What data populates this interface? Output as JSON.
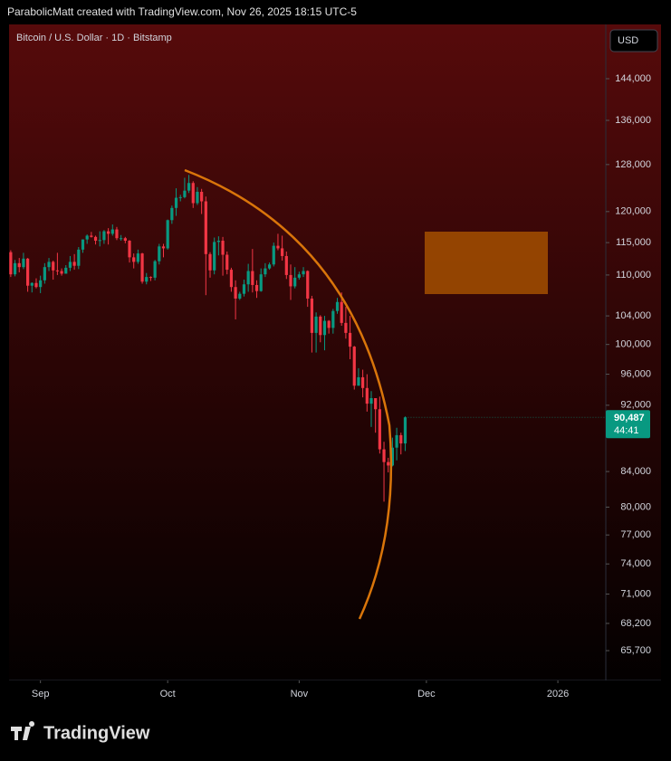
{
  "header": {
    "text": "ParabolicMatt created with TradingView.com, Nov 26, 2025 18:15 UTC-5"
  },
  "chart_data": {
    "type": "candlestick",
    "title": "Bitcoin / U.S. Dollar · 1D · Bitstamp",
    "currency": "USD",
    "categories": [
      null,
      null,
      null,
      null,
      null,
      null,
      null,
      null,
      null,
      null,
      null,
      null,
      null,
      null,
      null,
      null,
      null,
      null,
      null,
      null,
      null,
      null,
      null,
      null,
      null,
      null,
      null,
      null,
      null,
      null,
      null,
      null,
      null,
      null,
      null,
      null,
      null,
      null,
      null,
      null,
      null,
      null,
      null,
      null,
      null,
      null,
      null,
      null,
      null,
      null,
      null,
      null,
      null,
      null,
      null,
      null,
      null,
      null,
      null,
      null,
      null,
      null,
      null,
      null,
      null,
      null,
      null,
      null,
      null,
      null,
      null,
      null,
      null,
      null,
      null,
      null,
      null,
      null,
      null,
      null,
      null,
      null,
      null,
      null,
      null,
      null,
      null,
      null,
      null,
      null,
      null,
      null,
      null,
      null
    ],
    "open": [
      113500,
      110100,
      111800,
      111200,
      112500,
      108400,
      108800,
      108200,
      109200,
      111200,
      112000,
      110700,
      110600,
      110200,
      111100,
      112000,
      111400,
      113900,
      115500,
      116100,
      115900,
      115300,
      115400,
      116800,
      116400,
      117100,
      115700,
      115700,
      115300,
      112700,
      112000,
      113300,
      109000,
      109700,
      109600,
      112100,
      114400,
      114100,
      118600,
      120600,
      122300,
      122400,
      123500,
      124800,
      121400,
      123300,
      121700,
      113200,
      110700,
      115100,
      115300,
      113100,
      110800,
      108200,
      106500,
      107200,
      108600,
      110600,
      108500,
      107600,
      110100,
      111000,
      111600,
      114500,
      114100,
      112900,
      110000,
      108300,
      109600,
      110100,
      110600,
      106500,
      101600,
      103900,
      101300,
      103300,
      102300,
      104700,
      106000,
      103000,
      101600,
      99700,
      94500,
      95600,
      94200,
      92200,
      92900,
      91500,
      86600,
      85100,
      84700,
      86800,
      88300,
      87300
    ],
    "high": [
      113800,
      112300,
      112600,
      113400,
      112600,
      108900,
      109500,
      109900,
      111800,
      112600,
      112200,
      113400,
      111000,
      111500,
      112900,
      113200,
      114300,
      115500,
      116300,
      116700,
      116100,
      116800,
      117000,
      117300,
      117900,
      117500,
      116200,
      115900,
      115400,
      113300,
      113900,
      113400,
      110300,
      109800,
      112300,
      114800,
      114800,
      118700,
      121000,
      123900,
      122800,
      125700,
      126200,
      125100,
      124100,
      123800,
      122500,
      113500,
      115800,
      116000,
      115900,
      113600,
      111100,
      109200,
      107500,
      109300,
      111700,
      114000,
      109200,
      111000,
      111800,
      111900,
      115000,
      116400,
      116100,
      113600,
      111600,
      111200,
      110500,
      111200,
      110700,
      106900,
      104500,
      104100,
      104000,
      103400,
      105000,
      106600,
      107400,
      105300,
      104000,
      99800,
      96800,
      96600,
      96000,
      93800,
      92900,
      93100,
      87500,
      85600,
      88000,
      89200,
      88600,
      90600
    ],
    "low": [
      109700,
      109800,
      110400,
      110900,
      107500,
      107400,
      108000,
      107300,
      108700,
      110600,
      109300,
      110000,
      109900,
      110200,
      110600,
      110800,
      110900,
      113400,
      114800,
      115800,
      114700,
      114400,
      114800,
      114700,
      116100,
      115400,
      115300,
      114900,
      111900,
      111000,
      111700,
      108700,
      108600,
      109100,
      109200,
      111600,
      112700,
      113900,
      118000,
      119300,
      121700,
      122200,
      123100,
      120600,
      121100,
      119600,
      107000,
      109600,
      110100,
      113000,
      109900,
      110100,
      107500,
      103500,
      106300,
      106800,
      107500,
      107400,
      106600,
      107500,
      109700,
      110800,
      111300,
      113800,
      112200,
      109400,
      106300,
      108000,
      109300,
      109700,
      105300,
      98900,
      98900,
      100300,
      99200,
      101500,
      101500,
      104300,
      102600,
      100800,
      98000,
      94000,
      94500,
      93000,
      91200,
      89300,
      88600,
      86100,
      80600,
      83900,
      84600,
      85300,
      86000,
      86400
    ],
    "close": [
      110100,
      111800,
      111200,
      112500,
      108400,
      108800,
      108200,
      109200,
      111200,
      112000,
      110700,
      110600,
      110200,
      111100,
      112000,
      111400,
      113900,
      115500,
      116100,
      115900,
      115300,
      115400,
      116800,
      116400,
      117100,
      115700,
      115700,
      115300,
      112700,
      112000,
      113300,
      109000,
      109700,
      109600,
      112100,
      114400,
      114100,
      118600,
      120600,
      122300,
      122400,
      123500,
      124800,
      121400,
      123300,
      121700,
      113200,
      110700,
      115100,
      115300,
      113100,
      110800,
      108200,
      106500,
      107200,
      108600,
      110600,
      108500,
      107600,
      110100,
      111000,
      111600,
      114500,
      114100,
      112900,
      110000,
      108300,
      109600,
      110100,
      110600,
      106500,
      101600,
      103900,
      101300,
      103300,
      102300,
      104700,
      106000,
      103000,
      101600,
      99700,
      94500,
      95600,
      94200,
      92200,
      92900,
      91500,
      86600,
      85100,
      84700,
      86800,
      88300,
      87300,
      90487
    ],
    "up_color": "#089981",
    "down_color": "#f23645",
    "log_scale": true,
    "ylim": [
      63065,
      154940
    ],
    "yticks": [
      {
        "value": 144000,
        "label": "144,000"
      },
      {
        "value": 136000,
        "label": "136,000"
      },
      {
        "value": 128000,
        "label": "128,000"
      },
      {
        "value": 120000,
        "label": "120,000"
      },
      {
        "value": 115000,
        "label": "115,000"
      },
      {
        "value": 110000,
        "label": "110,000"
      },
      {
        "value": 104000,
        "label": "104,000"
      },
      {
        "value": 100000,
        "label": "100,000"
      },
      {
        "value": 96000,
        "label": "96,000"
      },
      {
        "value": 92000,
        "label": "92,000"
      },
      {
        "value": 84000,
        "label": "84,000"
      },
      {
        "value": 80000,
        "label": "80,000"
      },
      {
        "value": 77000,
        "label": "77,000"
      },
      {
        "value": 74000,
        "label": "74,000"
      },
      {
        "value": 71000,
        "label": "71,000"
      },
      {
        "value": 68200,
        "label": "68,200"
      },
      {
        "value": 65700,
        "label": "65,700"
      }
    ],
    "xlim": [
      -0.4,
      140.3
    ],
    "xticks": [
      {
        "value": 7,
        "label": "Sep"
      },
      {
        "value": 37,
        "label": "Oct"
      },
      {
        "value": 68,
        "label": "Nov"
      },
      {
        "value": 98,
        "label": "Dec"
      },
      {
        "value": 129,
        "label": "2026"
      }
    ],
    "price_tag": {
      "value": 90487,
      "label": "90,487",
      "countdown": "44:41",
      "color": "#089981"
    }
  },
  "footer": {
    "brand": "TradingView"
  }
}
